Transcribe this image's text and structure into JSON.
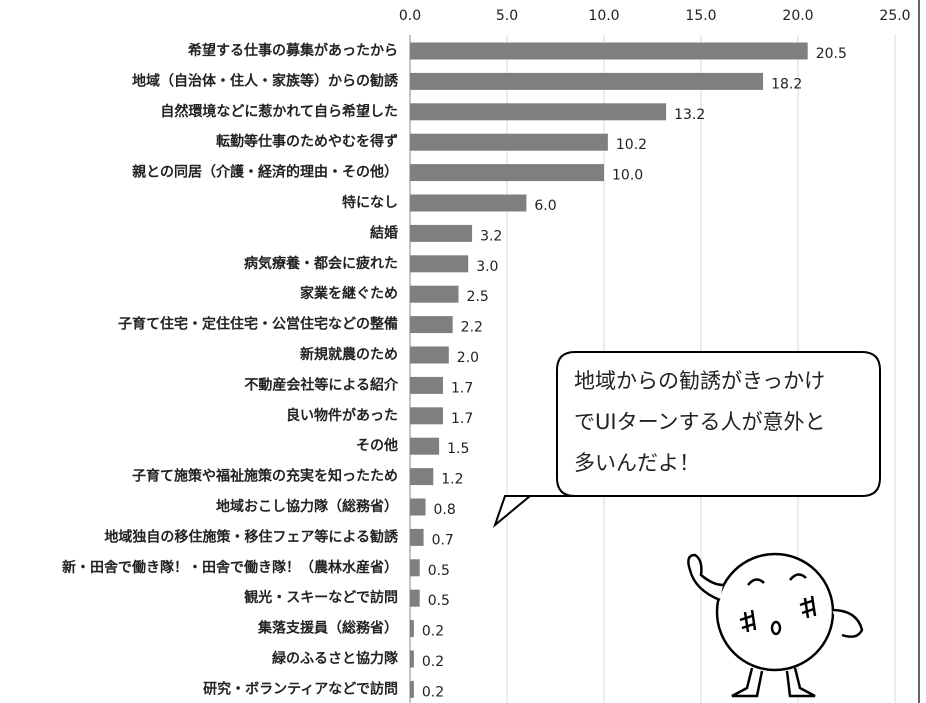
{
  "chart_data": {
    "type": "bar",
    "orientation": "horizontal",
    "categories": [
      "希望する仕事の募集があったから",
      "地域（自治体・住人・家族等）からの勧誘",
      "自然環境などに惹かれて自ら希望した",
      "転勤等仕事のためやむを得ず",
      "親との同居（介護・経済的理由・その他）",
      "特になし",
      "結婚",
      "病気療養・都会に疲れた",
      "家業を継ぐため",
      "子育て住宅・定住住宅・公営住宅などの整備",
      "新規就農のため",
      "不動産会社等による紹介",
      "良い物件があった",
      "その他",
      "子育て施策や福祉施策の充実を知ったため",
      "地域おこし協力隊（総務省）",
      "地域独自の移住施策・移住フェア等による勧誘",
      "新・田舎で働き隊！・田舎で働き隊！（農林水産省）",
      "観光・スキーなどで訪問",
      "集落支援員（総務省）",
      "緑のふるさと協力隊",
      "研究・ボランティアなどで訪問"
    ],
    "values": [
      20.5,
      18.2,
      13.2,
      10.2,
      10,
      6,
      3.2,
      3,
      2.5,
      2.2,
      2,
      1.7,
      1.7,
      1.5,
      1.2,
      0.8,
      0.7,
      0.5,
      0.5,
      0.2,
      0.2,
      0.2
    ],
    "value_labels": [
      "20.5",
      "18.2",
      "13.2",
      "10.2",
      "10.0",
      "6.0",
      "3.2",
      "3.0",
      "2.5",
      "2.2",
      "2.0",
      "1.7",
      "1.7",
      "1.5",
      "1.2",
      "0.8",
      "0.7",
      "0.5",
      "0.5",
      "0.2",
      "0.2",
      "0.2"
    ],
    "color": "#7f7f7f",
    "xlim": [
      0,
      25
    ],
    "xticks": [
      {
        "value": 0,
        "label": "0.0"
      },
      {
        "value": 5,
        "label": "5.0"
      },
      {
        "value": 10,
        "label": "10.0"
      },
      {
        "value": 15,
        "label": "15.0"
      },
      {
        "value": 20,
        "label": "20.0"
      },
      {
        "value": 25,
        "label": "25.0"
      }
    ],
    "grid": true,
    "annotation": [
      "地域からの勧誘がきっかけ",
      "でUIターンする人が意外と",
      "多いんだよ！"
    ]
  }
}
